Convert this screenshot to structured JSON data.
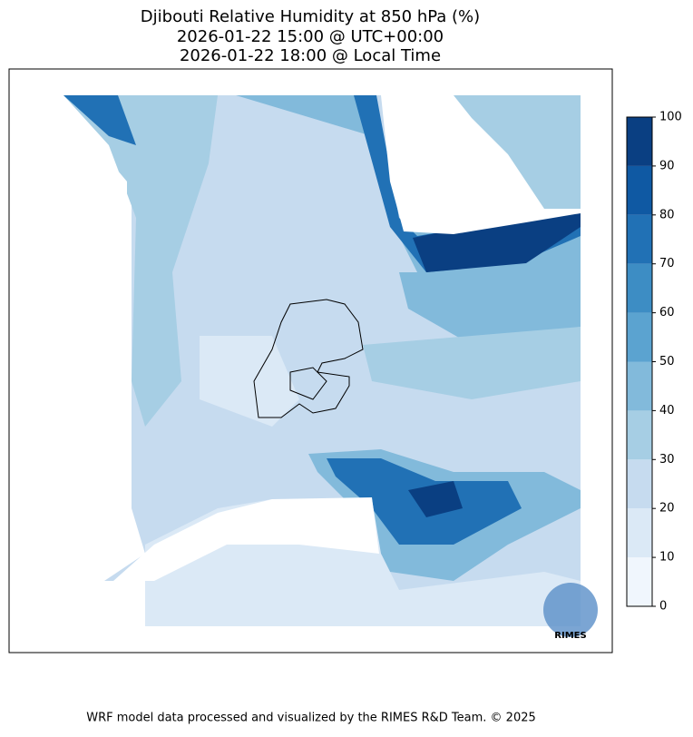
{
  "title": [
    "Djibouti Relative Humidity at 850 hPa (%)",
    "2026-01-22 15:00 @ UTC+00:00",
    "2026-01-22 18:00 @ Local Time"
  ],
  "colorbar": {
    "lim": [
      0,
      100
    ],
    "ticks": [
      0,
      10,
      20,
      30,
      40,
      50,
      60,
      70,
      80,
      90,
      100
    ],
    "colors": [
      "#f0f6fd",
      "#dbe9f6",
      "#c6dbef",
      "#a6cee4",
      "#82badb",
      "#5ba3d0",
      "#3d8dc4",
      "#2171b5",
      "#0f59a3",
      "#0a3f82"
    ]
  },
  "logo": "RIMES",
  "footer": "WRF model data processed and visualized by the RIMES R&D Team. © 2025"
}
